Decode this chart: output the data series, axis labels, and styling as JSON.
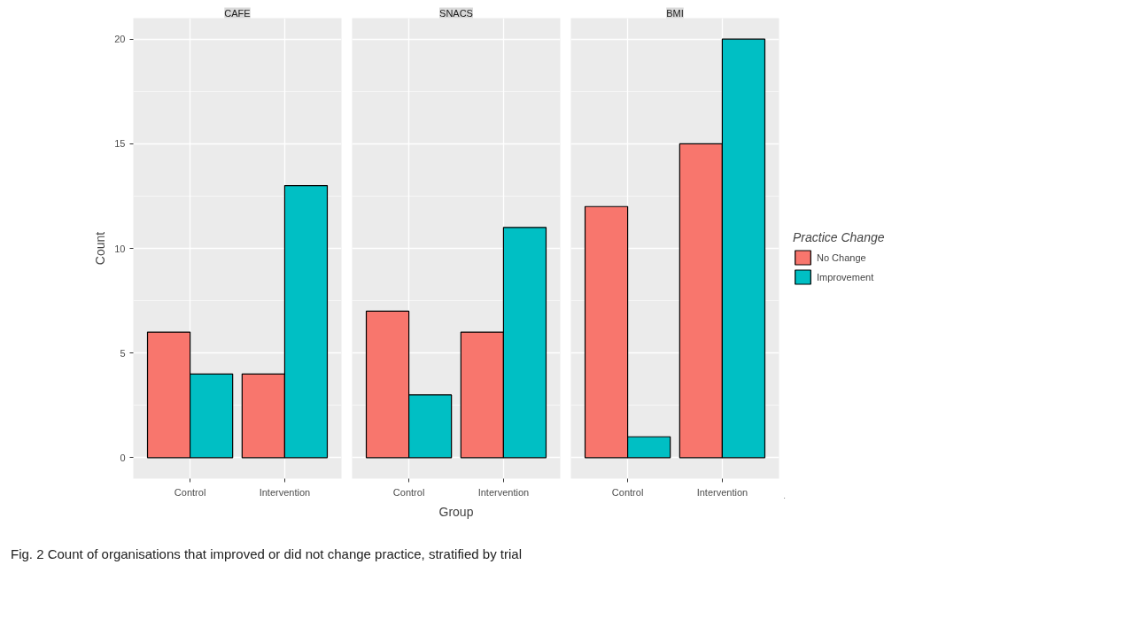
{
  "chart_data": [
    {
      "type": "bar",
      "title": "CAFE",
      "ylabel": "Count",
      "categories": [
        "Control",
        "Intervention"
      ],
      "ylim": [
        -1,
        21
      ],
      "yticks": [
        0,
        5,
        10,
        15,
        20
      ],
      "grid": true,
      "annotations": [
        "Fig. 2 Count of organisations that improved or did not change practice, stratified by trial"
      ],
      "series": [
        {
          "color": "#f8766d",
          "values": [
            6,
            4
          ]
        },
        {
          "color": "#00bfc4",
          "values": [
            4,
            13
          ]
        }
      ]
    },
    {
      "type": "bar",
      "title": "SNACS",
      "xlabel": "Group",
      "categories": [
        "Control",
        "Intervention"
      ],
      "ylim": [
        -1,
        21
      ],
      "yticks": [
        0,
        5,
        10,
        15,
        20
      ],
      "grid": true,
      "tick_labels": "x",
      "series": [
        {
          "color": "#f8766d",
          "values": [
            7,
            6
          ]
        },
        {
          "color": "#00bfc4",
          "values": [
            3,
            11
          ]
        }
      ]
    },
    {
      "type": "bar",
      "title": "BMI",
      "categories": [
        "Control",
        "Intervention"
      ],
      "ylim": [
        -1,
        21
      ],
      "yticks": [
        0,
        5,
        10,
        15,
        20
      ],
      "grid": true,
      "tick_labels": "x",
      "legend": "right",
      "legend_title": "Practice Change",
      "series": [
        {
          "name": "No Change",
          "color": "#f8766d",
          "values": [
            12,
            15
          ]
        },
        {
          "name": "Improvement",
          "color": "#00bfc4",
          "values": [
            1,
            20
          ]
        }
      ]
    }
  ]
}
